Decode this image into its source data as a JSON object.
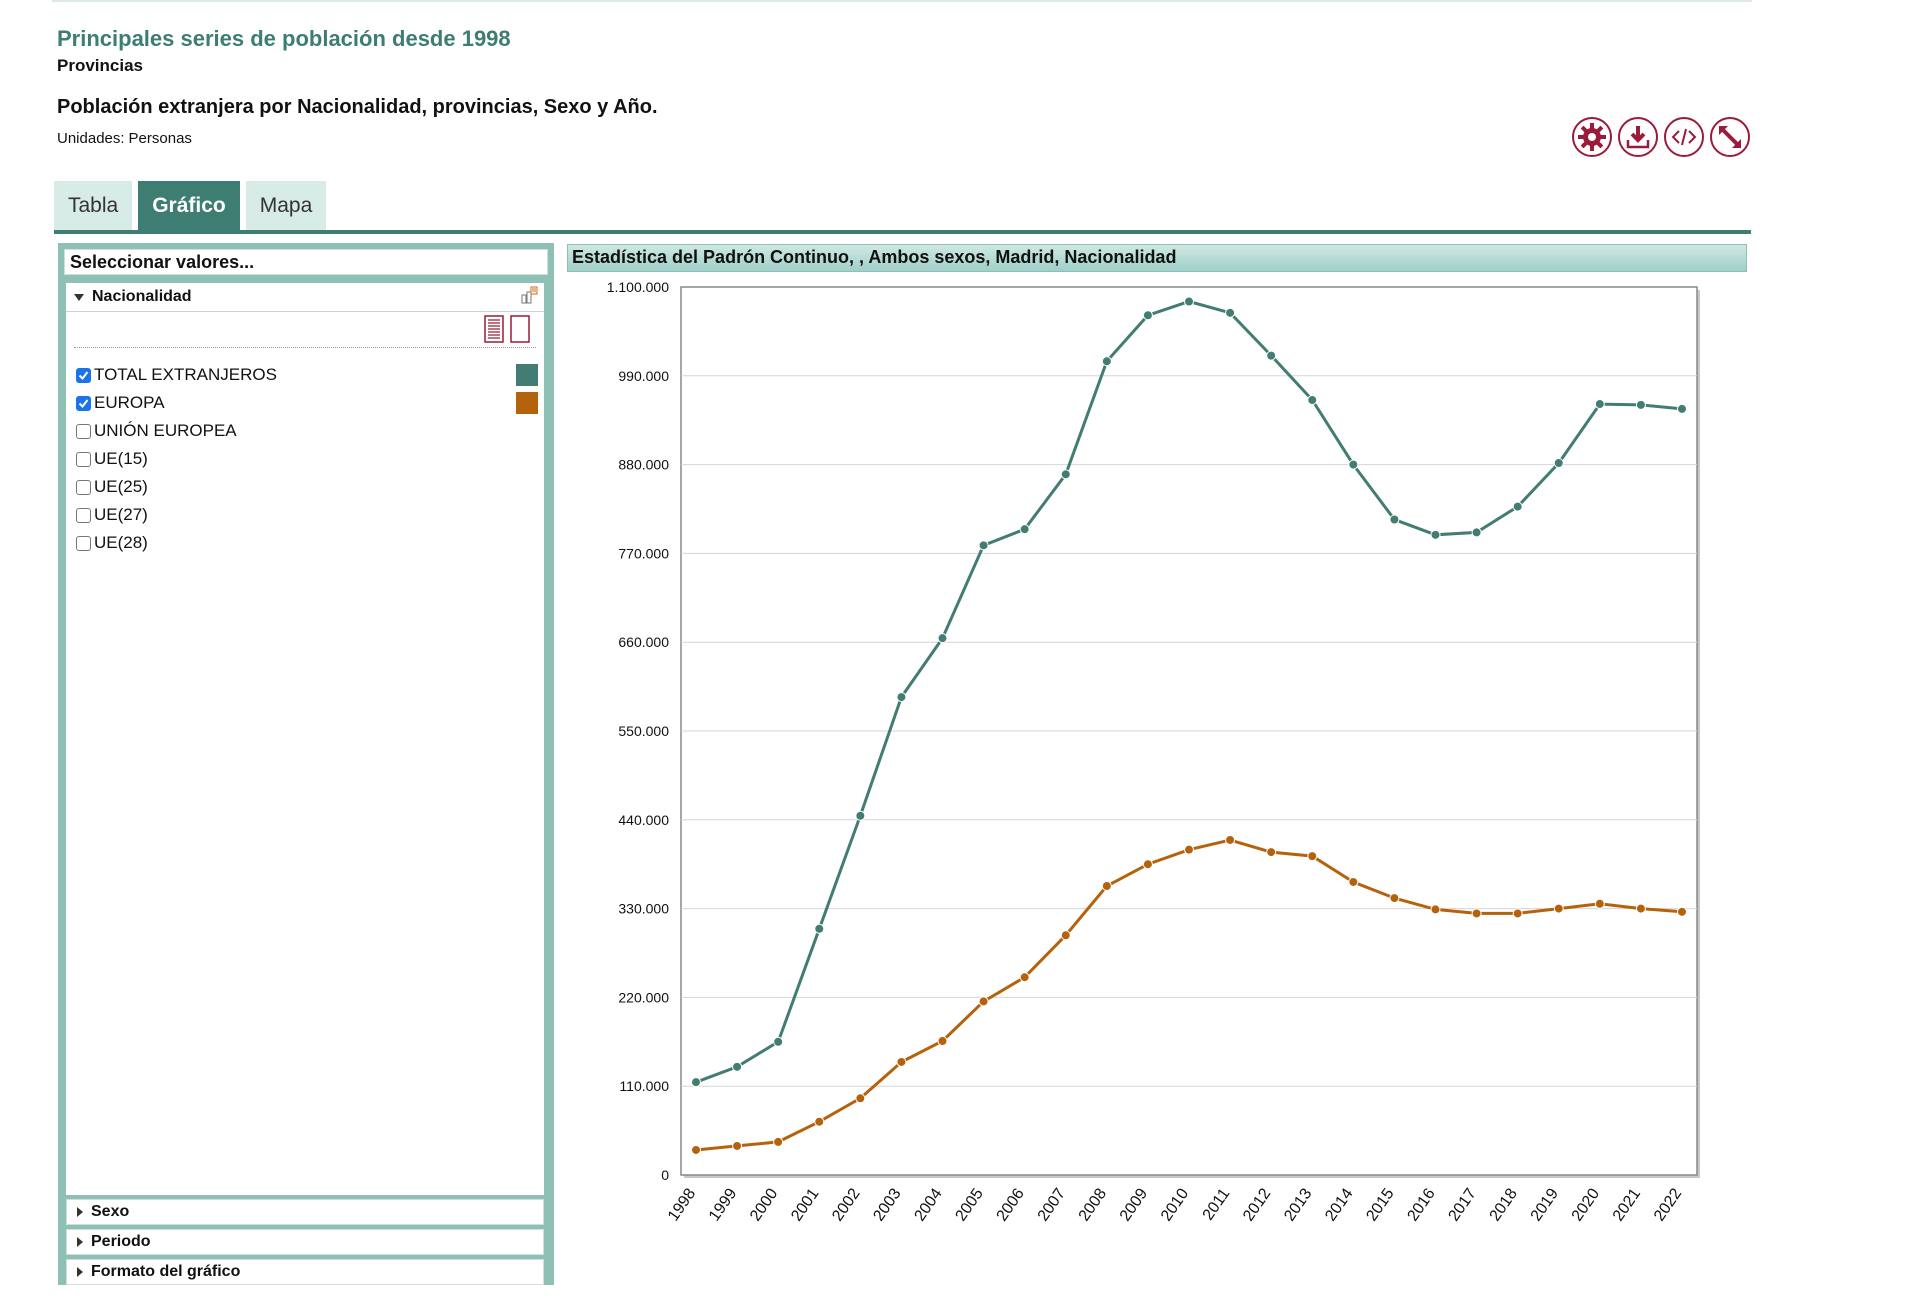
{
  "header": {
    "title": "Principales series de población desde 1998",
    "subtitle": "Provincias",
    "table_title": "Población extranjera por Nacionalidad, provincias, Sexo y Año.",
    "units_label": "Unidades:",
    "units_value": "Personas"
  },
  "toolbar": {
    "icons": [
      "gear-icon",
      "download-icon",
      "code-icon",
      "expand-icon"
    ],
    "accent": "#9b1c3a"
  },
  "tabs": [
    {
      "label": "Tabla",
      "active": false
    },
    {
      "label": "Gráfico",
      "active": true
    },
    {
      "label": "Mapa",
      "active": false
    }
  ],
  "sidebar": {
    "heading": "Seleccionar valores...",
    "group": "Nacionalidad",
    "options": [
      {
        "label": "TOTAL EXTRANJEROS",
        "checked": true,
        "color": "#427c72"
      },
      {
        "label": "EUROPA",
        "checked": true,
        "color": "#b5620d"
      },
      {
        "label": "UNIÓN EUROPEA",
        "checked": false
      },
      {
        "label": "UE(15)",
        "checked": false
      },
      {
        "label": "UE(25)",
        "checked": false
      },
      {
        "label": "UE(27)",
        "checked": false
      },
      {
        "label": "UE(28)",
        "checked": false
      }
    ],
    "collapsed": [
      "Sexo",
      "Periodo",
      "Formato del gráfico"
    ]
  },
  "chart_title": "Estadística del Padrón Continuo, , Ambos sexos, Madrid, Nacionalidad",
  "chart_data": {
    "type": "line",
    "title": "Estadística del Padrón Continuo, , Ambos sexos, Madrid, Nacionalidad",
    "x": [
      "1998",
      "1999",
      "2000",
      "2001",
      "2002",
      "2003",
      "2004",
      "2005",
      "2006",
      "2007",
      "2008",
      "2009",
      "2010",
      "2011",
      "2012",
      "2013",
      "2014",
      "2015",
      "2016",
      "2017",
      "2018",
      "2019",
      "2020",
      "2021",
      "2022"
    ],
    "ylim": [
      0,
      1100000
    ],
    "yticks": [
      0,
      110000,
      220000,
      330000,
      440000,
      550000,
      660000,
      770000,
      880000,
      990000,
      1100000
    ],
    "ytick_labels": [
      "0",
      "110.000",
      "220.000",
      "330.000",
      "440.000",
      "550.000",
      "660.000",
      "770.000",
      "880.000",
      "990.000",
      "1.100.000"
    ],
    "grid": true,
    "series": [
      {
        "name": "TOTAL EXTRANJEROS",
        "color": "#427c72",
        "values": [
          115000,
          134000,
          165000,
          305000,
          445000,
          592000,
          665000,
          780000,
          800000,
          868000,
          1008000,
          1065000,
          1082000,
          1068000,
          1015000,
          960000,
          880000,
          812000,
          793000,
          796000,
          828000,
          882000,
          955000,
          954000,
          949000
        ]
      },
      {
        "name": "EUROPA",
        "color": "#b5620d",
        "values": [
          31000,
          36000,
          41000,
          66000,
          95000,
          140000,
          166000,
          215000,
          245000,
          297000,
          358000,
          385000,
          403000,
          415000,
          400000,
          395000,
          363000,
          343000,
          329000,
          324000,
          324000,
          330000,
          336000,
          330000,
          326000
        ]
      }
    ]
  }
}
